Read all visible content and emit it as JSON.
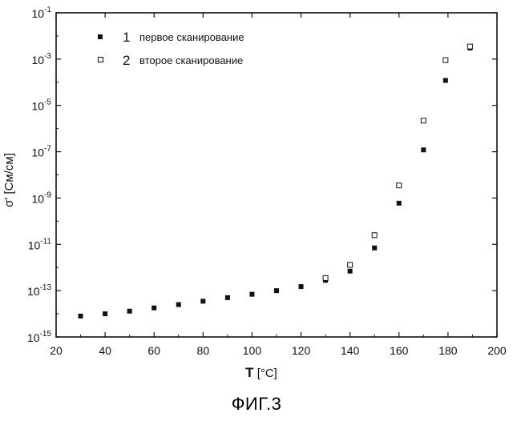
{
  "caption": "ФИГ.3",
  "colors": {
    "ink": "#111111",
    "background": "#ffffff"
  },
  "chart_data": {
    "type": "scatter",
    "xlabel_main": "T",
    "xlabel_unit": "[°C]",
    "ylabel_main": "σ'",
    "ylabel_unit": "[См/см]",
    "xlim": [
      20,
      200
    ],
    "x_ticks": [
      20,
      40,
      60,
      80,
      100,
      120,
      140,
      160,
      180,
      200
    ],
    "ylim_log10": [
      -15,
      -1
    ],
    "y_scale": "log",
    "y_tick_exponents": [
      -15,
      -13,
      -11,
      -9,
      -7,
      -5,
      -3,
      -1
    ],
    "grid": false,
    "legend_placement": "top-left",
    "series": [
      {
        "name": "первое сканирование",
        "legend_number": "1",
        "marker": "filled-square",
        "x": [
          30,
          40,
          50,
          60,
          70,
          80,
          90,
          100,
          110,
          120,
          130,
          140,
          150,
          160,
          170,
          179,
          189
        ],
        "y": [
          8e-15,
          1e-14,
          1.3e-14,
          1.8e-14,
          2.5e-14,
          3.5e-14,
          5e-14,
          7e-14,
          1e-13,
          1.5e-13,
          2.8e-13,
          7e-13,
          7e-12,
          6e-10,
          1.2e-07,
          0.00012,
          0.003
        ]
      },
      {
        "name": "второе сканирование",
        "legend_number": "2",
        "marker": "open-square",
        "x": [
          130,
          140,
          150,
          160,
          170,
          179,
          189
        ],
        "y": [
          3.5e-13,
          1.3e-12,
          2.5e-11,
          3.5e-09,
          2.2e-06,
          0.0009,
          0.0035
        ]
      }
    ]
  }
}
